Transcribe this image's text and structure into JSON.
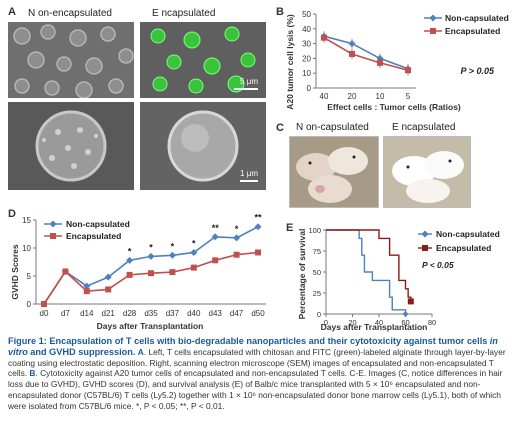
{
  "panelA": {
    "label": "A",
    "col1": "N on-encapsulated",
    "col2": "E ncapsulated",
    "scale_top": "5 μm",
    "scale_bottom": "1 μm"
  },
  "panelB": {
    "label": "B",
    "ylabel": "A20 tumor cell lysis (%)",
    "xlabel": "Effect cells : Tumor cells (Ratios)",
    "pvalue": "P > 0.05"
  },
  "panelC": {
    "label": "C",
    "col1": "N on-capsulated",
    "col2": "E ncapsulated"
  },
  "panelD": {
    "label": "D",
    "ylabel": "GVHD Scores",
    "xlabel": "Days after Transplantation"
  },
  "panelE": {
    "label": "E",
    "ylabel": "Percentage of survival",
    "xlabel": "Days after Transplantation",
    "pvalue": "P < 0.05"
  },
  "colors": {
    "non": "#4f81bd",
    "enc": "#c0504d",
    "enc_dark": "#8b1a1a"
  },
  "chart_data": [
    {
      "id": "B",
      "type": "line",
      "categories": [
        "40",
        "20",
        "10",
        "5"
      ],
      "series": [
        {
          "name": "Non-capsulated",
          "values": [
            35,
            30,
            20,
            13
          ]
        },
        {
          "name": "Encapsulated",
          "values": [
            34,
            23,
            17,
            12
          ]
        }
      ],
      "xlabel": "Effect cells : Tumor cells (Ratios)",
      "ylabel": "A20 tumor cell lysis (%)",
      "ylim": [
        0,
        50
      ],
      "yticks": [
        "0",
        "10",
        "20",
        "30",
        "40",
        "50"
      ],
      "legend": "top-right",
      "annotation": "P > 0.05"
    },
    {
      "id": "D",
      "type": "line",
      "categories": [
        "d0",
        "d7",
        "d14",
        "d21",
        "d28",
        "d35",
        "d37",
        "d40",
        "d43",
        "d47",
        "d50"
      ],
      "series": [
        {
          "name": "Non-capsulated",
          "values": [
            0,
            5.8,
            3.2,
            4.8,
            7.8,
            8.5,
            8.7,
            9.2,
            12,
            11.8,
            13.8
          ]
        },
        {
          "name": "Encapsulated",
          "values": [
            0,
            5.8,
            2.3,
            2.6,
            5.2,
            5.5,
            5.7,
            6.5,
            7.8,
            8.8,
            9.2
          ]
        }
      ],
      "significance": [
        "",
        "",
        "",
        "",
        "*",
        "*",
        "*",
        "*",
        "**",
        "*",
        "**"
      ],
      "xlabel": "Days after Transplantation",
      "ylabel": "GVHD Scores",
      "ylim": [
        0,
        15
      ],
      "yticks": [
        "0",
        "5",
        "10",
        "15"
      ],
      "legend": "top-left"
    },
    {
      "id": "E",
      "type": "line",
      "step": true,
      "series": [
        {
          "name": "Non-capsulated",
          "points": [
            [
              0,
              100
            ],
            [
              25,
              100
            ],
            [
              25,
              90
            ],
            [
              27,
              90
            ],
            [
              27,
              70
            ],
            [
              29,
              70
            ],
            [
              29,
              50
            ],
            [
              35,
              50
            ],
            [
              35,
              40
            ],
            [
              48,
              40
            ],
            [
              48,
              20
            ],
            [
              50,
              20
            ],
            [
              50,
              5
            ],
            [
              60,
              5
            ],
            [
              60,
              0
            ]
          ]
        },
        {
          "name": "Encapsulated",
          "points": [
            [
              0,
              100
            ],
            [
              40,
              100
            ],
            [
              40,
              90
            ],
            [
              48,
              90
            ],
            [
              48,
              70
            ],
            [
              55,
              70
            ],
            [
              55,
              40
            ],
            [
              60,
              40
            ],
            [
              60,
              30
            ],
            [
              62,
              30
            ],
            [
              62,
              20
            ],
            [
              64,
              20
            ],
            [
              64,
              15
            ]
          ]
        }
      ],
      "xlabel": "Days after Transplantation",
      "ylabel": "Percentage of survival",
      "xlim": [
        0,
        80
      ],
      "xticks": [
        "0",
        "20",
        "40",
        "60",
        "80"
      ],
      "ylim": [
        0,
        100
      ],
      "yticks": [
        "0",
        "25",
        "50",
        "75",
        "100"
      ],
      "legend": "top-right",
      "annotation": "P < 0.05"
    }
  ],
  "caption": {
    "lead": "Figure 1: Encapsulation of T cells with bio-degradable nanoparticles and their cytotoxicity against tumor cells",
    "lead_it": "in vitro",
    "lead_end": "and GVHD suppression.",
    "part_a": "A",
    "text_a": ". Left, T cells encapsulated with chitosan and FITC (green)-labeled alginate through layer-by-layer coating using electrostatic deposition. Right, scanning electron microscope (SEM) images of encapsulated and non-encapsulated T cells.",
    "part_b": "B",
    "text_b": ". Cytotoxicity against A20 tumor cells of encapsulated and non-encapsulated T cells. C-E. Images (C, notice differences in hair loss due to GVHD), GVHD scores (D), and survival analysis (E) of Balb/c mice transplanted with 5 × 10⁶ encapsulated and non-encapsulated donor (C57BL/6) T cells (Ly5.2) together with 1 × 10⁶ non-encapsulated donor bone marrow cells (Ly5.1), both of which were isolated from C57BL/6 mice. *, P < 0.05; **, P < 0.01."
  }
}
